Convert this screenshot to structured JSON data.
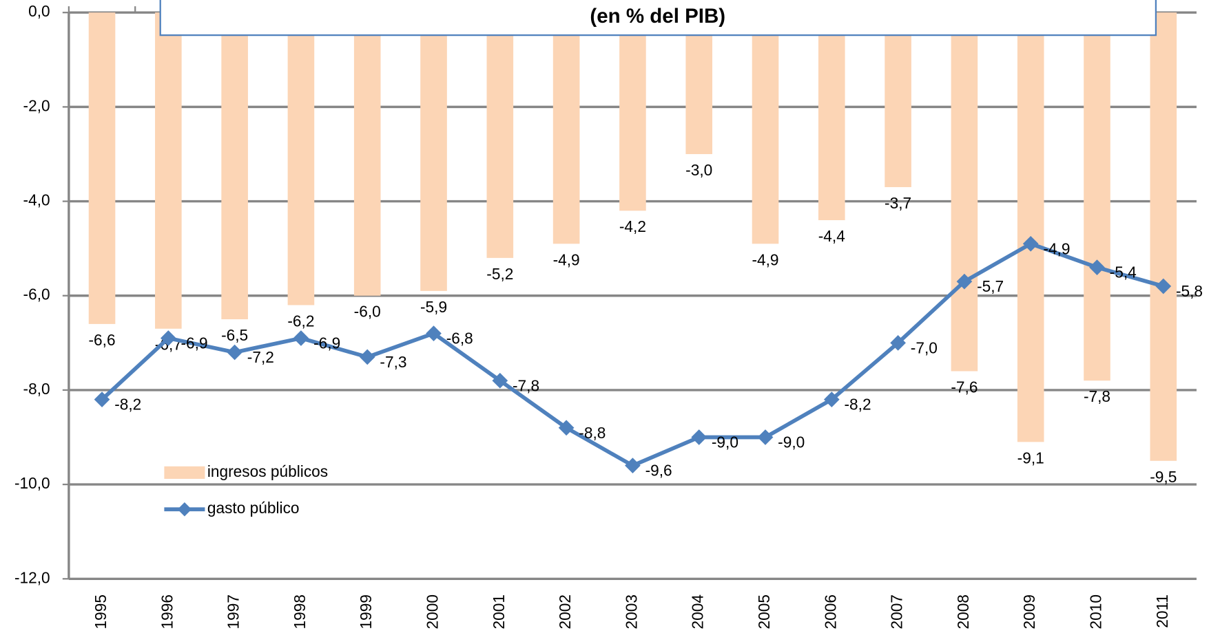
{
  "chart_data": {
    "type": "bar_line",
    "title": "(en % del PIB)",
    "categories": [
      "1995",
      "1996",
      "1997",
      "1998",
      "1999",
      "2000",
      "2001",
      "2002",
      "2003",
      "2004",
      "2005",
      "2006",
      "2007",
      "2008",
      "2009",
      "2010",
      "2011"
    ],
    "series": [
      {
        "name": "ingresos públicos",
        "type": "bar",
        "color": "#fcd5b5",
        "values": [
          -6.6,
          -6.7,
          -6.5,
          -6.2,
          -6.0,
          -5.9,
          -5.2,
          -4.9,
          -4.2,
          -3.0,
          -4.9,
          -4.4,
          -3.7,
          -7.6,
          -9.1,
          -7.8,
          -9.5
        ],
        "value_labels": [
          "-6,6",
          "-6,7",
          "-6,5",
          "-6,2",
          "-6,0",
          "-5,9",
          "-5,2",
          "-4,9",
          "-4,2",
          "-3,0",
          "-4,9",
          "-4,4",
          "-3,7",
          "-7,6",
          "-9,1",
          "-7,8",
          "-9,5"
        ]
      },
      {
        "name": "gasto público",
        "type": "line",
        "color": "#4f81bd",
        "values": [
          -8.2,
          -6.9,
          -7.2,
          -6.9,
          -7.3,
          -6.8,
          -7.8,
          -8.8,
          -9.6,
          -9.0,
          -9.0,
          -8.2,
          -7.0,
          -5.7,
          -4.9,
          -5.4,
          -5.8
        ],
        "value_labels": [
          "-8,2",
          "-6,9",
          "-7,2",
          "-6,9",
          "-7,3",
          "-6,8",
          "-7,8",
          "-8,8",
          "-9,6",
          "-9,0",
          "-9,0",
          "-8,2",
          "-7,0",
          "-5,7",
          "-4,9",
          "-5,4",
          "-5,8"
        ]
      }
    ],
    "ylim": [
      -12,
      0
    ],
    "yticks": [
      {
        "value": -12,
        "label": "-12,0"
      },
      {
        "value": -10,
        "label": "-10,0"
      },
      {
        "value": -8,
        "label": "-8,0"
      },
      {
        "value": -6,
        "label": "-6,0"
      },
      {
        "value": -4,
        "label": "-4,0"
      },
      {
        "value": -2,
        "label": "-2,0"
      },
      {
        "value": 0,
        "label": "0,0"
      }
    ],
    "grid": true,
    "legend": "lower left"
  }
}
